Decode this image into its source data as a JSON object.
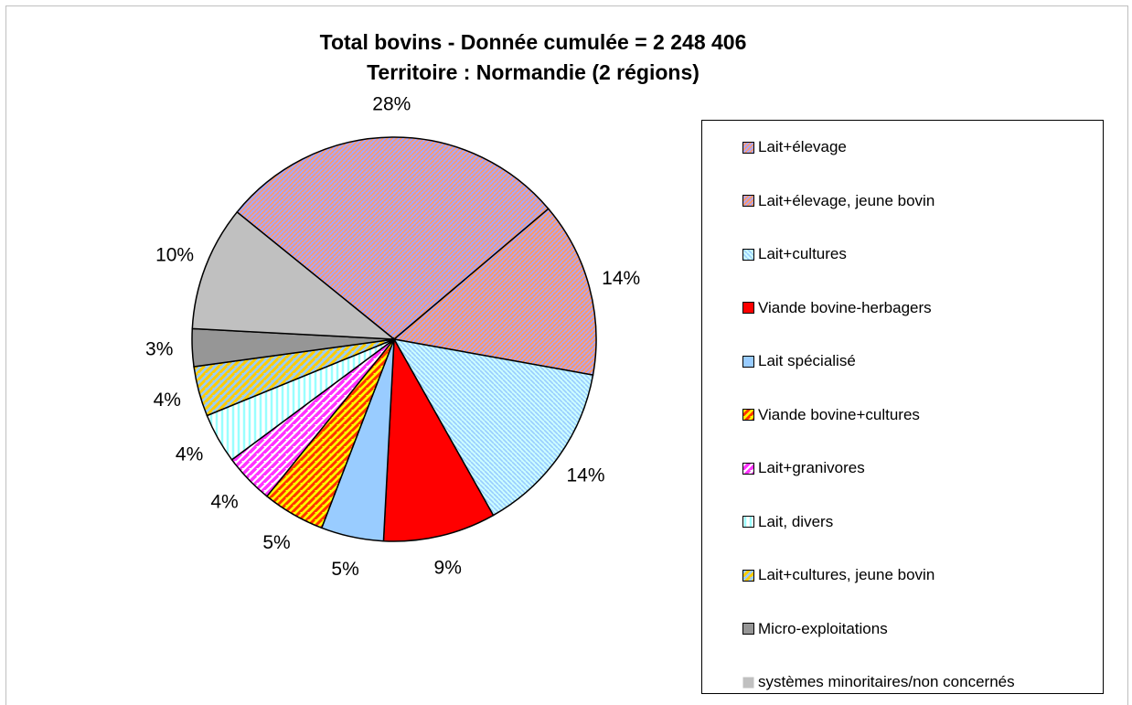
{
  "chart_data": {
    "type": "pie",
    "title": "Total bovins - Donnée cumulée = 2 248 406",
    "subtitle": "Territoire : Normandie (2 régions)",
    "legend_position": "right",
    "slices": [
      {
        "label": "Lait+élevage",
        "value": 28,
        "display": "28%",
        "color": "#a6a6ff",
        "pattern": "diag-right",
        "pattern_color": "#ff9966"
      },
      {
        "label": "Lait+élevage, jeune bovin",
        "value": 14,
        "display": "14%",
        "color": "#ff9966",
        "pattern": "diag-right",
        "pattern_color": "#a6a6ff"
      },
      {
        "label": "Lait+cultures",
        "value": 14,
        "display": "14%",
        "color": "#ccffff",
        "pattern": "diag-left",
        "pattern_color": "#99ccff"
      },
      {
        "label": "Viande bovine-herbagers",
        "value": 9,
        "display": "9%",
        "color": "#ff0000",
        "pattern": "solid",
        "pattern_color": "#ff0000"
      },
      {
        "label": "Lait spécialisé",
        "value": 5,
        "display": "5%",
        "color": "#99ccff",
        "pattern": "solid",
        "pattern_color": "#99ccff"
      },
      {
        "label": "Viande bovine+cultures",
        "value": 5,
        "display": "5%",
        "color": "#ffff00",
        "pattern": "diag-thick",
        "pattern_color": "#ff3300"
      },
      {
        "label": "Lait+granivores",
        "value": 4,
        "display": "4%",
        "color": "#ffffff",
        "pattern": "diag-strong",
        "pattern_color": "#ff33ff"
      },
      {
        "label": "Lait, divers",
        "value": 4,
        "display": "4%",
        "color": "#ffffff",
        "pattern": "vertical",
        "pattern_color": "#99ffff"
      },
      {
        "label": "Lait+cultures, jeune bovin",
        "value": 4,
        "display": "4%",
        "color": "#99ccff",
        "pattern": "diag-thick",
        "pattern_color": "#ffcc00"
      },
      {
        "label": "Micro-exploitations",
        "value": 3,
        "display": "3%",
        "color": "#969696",
        "pattern": "solid",
        "pattern_color": "#969696"
      },
      {
        "label": "systèmes minoritaires/non concernés",
        "value": 10,
        "display": "10%",
        "color": "#c0c0c0",
        "pattern": "solid",
        "pattern_color": "#c0c0c0"
      }
    ]
  }
}
